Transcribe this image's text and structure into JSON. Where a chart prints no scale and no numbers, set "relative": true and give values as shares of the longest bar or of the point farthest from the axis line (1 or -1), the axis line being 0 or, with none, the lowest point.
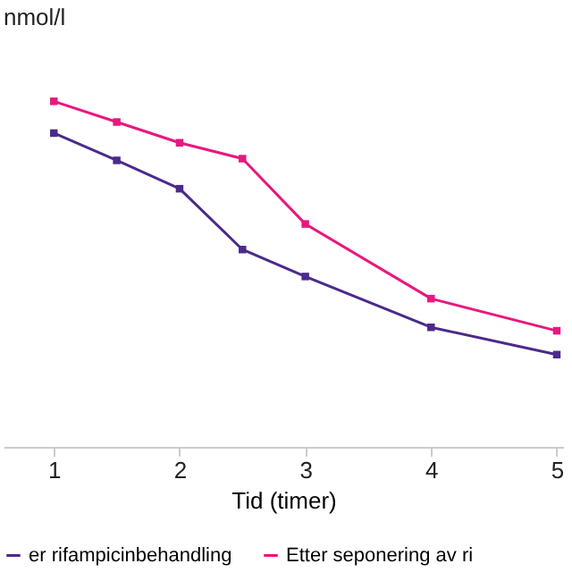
{
  "chart_data": {
    "type": "line",
    "relative": true,
    "ylabel": "nmol/l",
    "xlabel": "Tid (timer)",
    "x": [
      1,
      1.5,
      2,
      2.5,
      3,
      4,
      5
    ],
    "xlim": [
      0.6,
      5.05
    ],
    "xticks": [
      1,
      2,
      3,
      4,
      5
    ],
    "series": [
      {
        "name": "er rifampicinbehandling",
        "color": "#4b2a8c",
        "values": [
          0.908,
          0.829,
          0.747,
          0.571,
          0.493,
          0.346,
          0.267
        ]
      },
      {
        "name": "Etter seponering av ri",
        "color": "#e8187e",
        "values": [
          1,
          0.94,
          0.88,
          0.834,
          0.645,
          0.429,
          0.336
        ]
      }
    ],
    "marker": "square",
    "line_style": "solid",
    "legend": "bottom",
    "grid": false
  }
}
